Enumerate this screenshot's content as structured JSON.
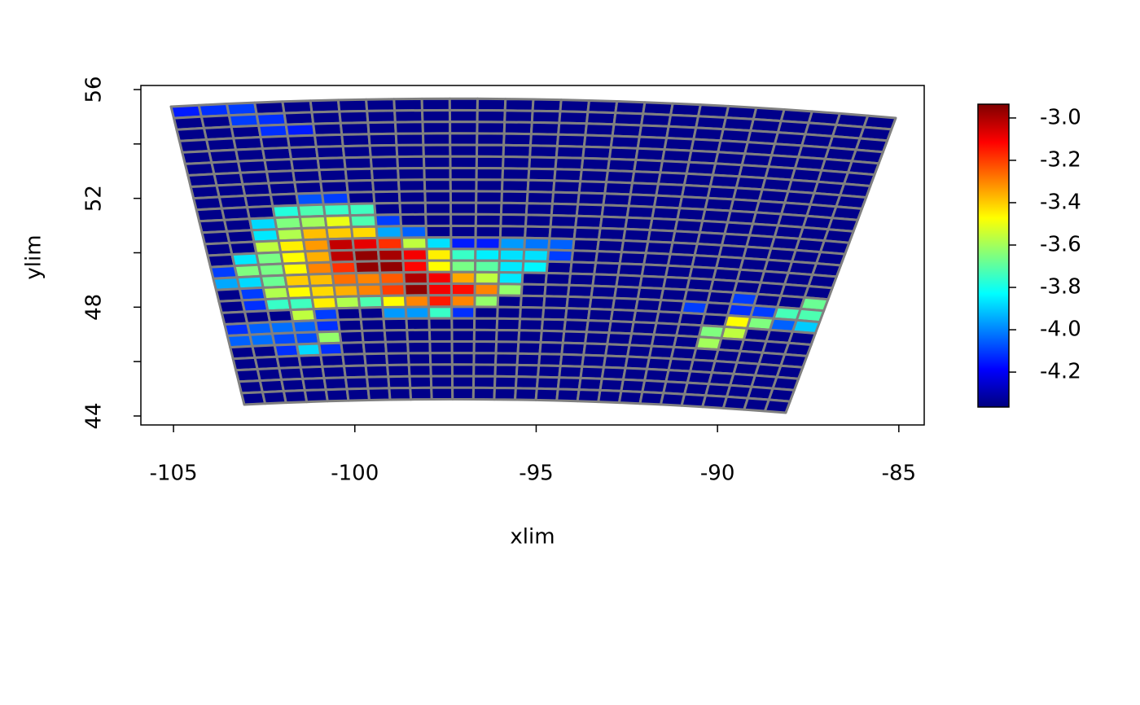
{
  "chart_data": {
    "type": "heatmap",
    "x_label": "xlim",
    "y_label": "ylim",
    "xlim": [
      -105.9,
      -84.3
    ],
    "ylim": [
      43.67,
      56.15
    ],
    "xticks": [
      -105,
      -100,
      -95,
      -90,
      -85
    ],
    "yticks": [
      44,
      {
        "value": 46,
        "label": null
      },
      48,
      {
        "value": 50,
        "label": null
      },
      52,
      {
        "value": 54,
        "label": null
      },
      56
    ],
    "zlim": [
      -4.365,
      -2.935
    ],
    "zticks": [
      {
        "value": -3,
        "label": "-3.0"
      },
      -3.2,
      -3.4,
      -3.6,
      -3.8,
      {
        "value": -4,
        "label": "-4.0"
      },
      -4.2
    ],
    "colormap": [
      "#00007F",
      "#0000FF",
      "#007FFF",
      "#00FFFF",
      "#7FFF7F",
      "#FFFF00",
      "#FF7F00",
      "#FF0000",
      "#7F0000"
    ],
    "cell_border_color": "#808080",
    "z": [
      [
        -4.15,
        -4.12,
        -4.1,
        -4.35,
        -4.35,
        -4.35,
        -4.35,
        -4.35,
        -4.35,
        -4.35,
        -4.35,
        -4.35,
        -4.35,
        -4.35,
        -4.35,
        -4.35,
        -4.35,
        -4.35,
        -4.35,
        -4.35,
        -4.35,
        -4.35,
        -4.35,
        -4.35,
        -4.35,
        -4.35
      ],
      [
        -4.35,
        -4.35,
        -4.1,
        -4.12,
        -4.35,
        -4.35,
        -4.35,
        -4.35,
        -4.35,
        -4.35,
        -4.35,
        -4.35,
        -4.35,
        -4.35,
        -4.35,
        -4.35,
        -4.35,
        -4.35,
        -4.35,
        -4.35,
        -4.35,
        -4.35,
        -4.35,
        -4.35,
        -4.35,
        -4.35
      ],
      [
        -4.35,
        -4.35,
        -4.35,
        -4.12,
        -4.15,
        -4.35,
        -4.35,
        -4.35,
        -4.35,
        -4.35,
        -4.35,
        -4.35,
        -4.35,
        -4.35,
        -4.35,
        -4.35,
        -4.35,
        -4.35,
        -4.35,
        -4.35,
        -4.35,
        -4.35,
        -4.35,
        -4.35,
        -4.35,
        -4.35
      ],
      [
        -4.35,
        -4.35,
        -4.35,
        -4.35,
        -4.35,
        -4.35,
        -4.35,
        -4.35,
        -4.35,
        -4.35,
        -4.35,
        -4.35,
        -4.35,
        -4.35,
        -4.35,
        -4.35,
        -4.35,
        -4.35,
        -4.35,
        -4.35,
        -4.35,
        -4.35,
        -4.35,
        -4.35,
        -4.35,
        -4.35
      ],
      [
        -4.35,
        -4.35,
        -4.35,
        -4.35,
        -4.35,
        -4.35,
        -4.35,
        -4.35,
        -4.35,
        -4.35,
        -4.35,
        -4.35,
        -4.35,
        -4.35,
        -4.35,
        -4.35,
        -4.35,
        -4.35,
        -4.35,
        -4.35,
        -4.35,
        -4.35,
        -4.35,
        -4.35,
        -4.35,
        -4.35
      ],
      [
        -4.35,
        -4.35,
        -4.35,
        -4.35,
        -4.35,
        -4.35,
        -4.35,
        -4.35,
        -4.35,
        -4.35,
        -4.35,
        -4.35,
        -4.35,
        -4.35,
        -4.35,
        -4.35,
        -4.35,
        -4.35,
        -4.35,
        -4.35,
        -4.35,
        -4.35,
        -4.35,
        -4.35,
        -4.35,
        -4.35
      ],
      [
        -4.35,
        -4.35,
        -4.35,
        -4.35,
        -4.35,
        -4.35,
        -4.35,
        -4.35,
        -4.35,
        -4.35,
        -4.35,
        -4.35,
        -4.35,
        -4.35,
        -4.35,
        -4.35,
        -4.35,
        -4.35,
        -4.35,
        -4.35,
        -4.35,
        -4.35,
        -4.35,
        -4.35,
        -4.35,
        -4.35
      ],
      [
        -4.35,
        -4.35,
        -4.35,
        -4.35,
        -4.35,
        -4.35,
        -4.35,
        -4.35,
        -4.35,
        -4.35,
        -4.35,
        -4.35,
        -4.35,
        -4.35,
        -4.35,
        -4.35,
        -4.35,
        -4.35,
        -4.35,
        -4.35,
        -4.35,
        -4.35,
        -4.35,
        -4.35,
        -4.35,
        -4.35
      ],
      [
        -4.35,
        -4.35,
        -4.35,
        -4.35,
        -4.07,
        -4.1,
        -4.35,
        -4.35,
        -4.35,
        -4.35,
        -4.35,
        -4.35,
        -4.35,
        -4.35,
        -4.35,
        -4.35,
        -4.35,
        -4.35,
        -4.35,
        -4.35,
        -4.35,
        -4.35,
        -4.35,
        -4.35,
        -4.35,
        -4.35
      ],
      [
        -4.35,
        -4.35,
        -4.35,
        -3.78,
        -3.72,
        -3.75,
        -3.74,
        -4.35,
        -4.35,
        -4.35,
        -4.35,
        -4.35,
        -4.35,
        -4.35,
        -4.35,
        -4.35,
        -4.35,
        -4.35,
        -4.35,
        -4.35,
        -4.35,
        -4.35,
        -4.35,
        -4.35,
        -4.35,
        -4.35
      ],
      [
        -4.35,
        -4.35,
        -3.88,
        -3.65,
        -3.6,
        -3.5,
        -3.72,
        -4.1,
        -4.35,
        -4.35,
        -4.35,
        -4.35,
        -4.35,
        -4.35,
        -4.35,
        -4.35,
        -4.35,
        -4.35,
        -4.35,
        -4.35,
        -4.35,
        -4.35,
        -4.35,
        -4.35,
        -4.35,
        -4.35
      ],
      [
        -4.35,
        -4.35,
        -3.86,
        -3.58,
        -3.38,
        -3.4,
        -3.42,
        -3.95,
        -4.05,
        -4.35,
        -4.35,
        -4.35,
        -4.35,
        -4.35,
        -4.35,
        -4.35,
        -4.35,
        -4.35,
        -4.35,
        -4.35,
        -4.35,
        -4.35,
        -4.35,
        -4.35,
        -4.35,
        -4.35
      ],
      [
        -4.35,
        -4.35,
        -3.56,
        -3.45,
        -3.33,
        -3.03,
        -3.08,
        -3.18,
        -3.56,
        -3.87,
        -4.15,
        -4.15,
        -3.97,
        -4.02,
        -4.05,
        -4.35,
        -4.35,
        -4.35,
        -4.35,
        -4.35,
        -4.35,
        -4.35,
        -4.35,
        -4.35,
        -4.35,
        -4.35
      ],
      [
        -4.35,
        -3.86,
        -3.66,
        -3.47,
        -3.36,
        -3.02,
        -2.96,
        -2.99,
        -3.1,
        -3.45,
        -3.75,
        -3.85,
        -3.87,
        -3.87,
        -4.1,
        -4.35,
        -4.35,
        -4.35,
        -4.35,
        -4.35,
        -4.35,
        -4.35,
        -4.35,
        -4.35,
        -4.35,
        -4.35
      ],
      [
        -4.1,
        -3.65,
        -3.66,
        -3.47,
        -3.3,
        -3.18,
        -2.96,
        -2.96,
        -3.12,
        -3.47,
        -3.66,
        -3.7,
        -3.86,
        -3.84,
        -4.35,
        -4.35,
        -4.35,
        -4.35,
        -4.35,
        -4.35,
        -4.35,
        -4.35,
        -4.35,
        -4.35,
        -4.35,
        -4.35
      ],
      [
        -3.95,
        -3.88,
        -3.68,
        -3.4,
        -3.38,
        -3.27,
        -3.3,
        -3.24,
        -3.0,
        -3.1,
        -3.35,
        -3.56,
        -3.86,
        -4.35,
        -4.35,
        -4.35,
        -4.35,
        -4.35,
        -4.35,
        -4.35,
        -4.35,
        -4.35,
        -4.35,
        -4.35,
        -4.35,
        -4.35
      ],
      [
        -4.35,
        -4.1,
        -3.58,
        -3.47,
        -3.42,
        -3.36,
        -3.3,
        -3.2,
        -2.96,
        -3.1,
        -3.13,
        -3.3,
        -3.62,
        -4.35,
        -4.35,
        -4.35,
        -4.35,
        -4.35,
        -4.35,
        -4.35,
        -4.35,
        -4.35,
        -4.1,
        -4.35,
        -4.35,
        -3.68
      ],
      [
        -4.35,
        -4.12,
        -3.75,
        -3.74,
        -3.45,
        -3.58,
        -3.72,
        -3.47,
        -3.3,
        -3.15,
        -3.3,
        -3.62,
        -4.35,
        -4.35,
        -4.35,
        -4.35,
        -4.35,
        -4.35,
        -4.35,
        -4.35,
        -4.1,
        -4.35,
        -4.12,
        -4.1,
        -3.73,
        -3.72
      ],
      [
        -4.35,
        -4.35,
        -4.35,
        -3.56,
        -4.1,
        -4.35,
        -4.35,
        -3.97,
        -3.97,
        -3.75,
        -4.12,
        -4.35,
        -4.35,
        -4.35,
        -4.35,
        -4.35,
        -4.35,
        -4.35,
        -4.35,
        -4.35,
        -4.35,
        -4.35,
        -3.47,
        -3.65,
        -4.05,
        -3.9
      ],
      [
        -4.12,
        -4.05,
        -4.03,
        -4.05,
        -4.12,
        -4.35,
        -4.35,
        -4.35,
        -4.35,
        -4.35,
        -4.35,
        -4.35,
        -4.35,
        -4.35,
        -4.35,
        -4.35,
        -4.35,
        -4.35,
        -4.35,
        -4.35,
        -4.35,
        -3.65,
        -3.56,
        -4.35,
        -4.35,
        -4.35
      ],
      [
        -4.05,
        -4.03,
        -4.08,
        -4.08,
        -3.62,
        -4.35,
        -4.35,
        -4.35,
        -4.35,
        -4.35,
        -4.35,
        -4.35,
        -4.35,
        -4.35,
        -4.35,
        -4.35,
        -4.35,
        -4.35,
        -4.35,
        -4.35,
        -4.35,
        -3.6,
        -4.35,
        -4.35,
        -4.35,
        -4.35
      ],
      [
        -4.35,
        -4.35,
        -4.12,
        -3.88,
        -4.12,
        -4.35,
        -4.35,
        -4.35,
        -4.35,
        -4.35,
        -4.35,
        -4.35,
        -4.35,
        -4.35,
        -4.35,
        -4.35,
        -4.35,
        -4.35,
        -4.35,
        -4.35,
        -4.35,
        -4.35,
        -4.35,
        -4.35,
        -4.35,
        -4.35
      ],
      [
        -4.35,
        -4.35,
        -4.35,
        -4.35,
        -4.35,
        -4.35,
        -4.35,
        -4.35,
        -4.35,
        -4.35,
        -4.35,
        -4.35,
        -4.35,
        -4.35,
        -4.35,
        -4.35,
        -4.35,
        -4.35,
        -4.35,
        -4.35,
        -4.35,
        -4.35,
        -4.35,
        -4.35,
        -4.35,
        -4.35
      ],
      [
        -4.35,
        -4.35,
        -4.35,
        -4.35,
        -4.35,
        -4.35,
        -4.35,
        -4.35,
        -4.35,
        -4.35,
        -4.35,
        -4.35,
        -4.35,
        -4.35,
        -4.35,
        -4.35,
        -4.35,
        -4.35,
        -4.35,
        -4.35,
        -4.35,
        -4.35,
        -4.35,
        -4.35,
        -4.35,
        -4.35
      ],
      [
        -4.35,
        -4.35,
        -4.35,
        -4.35,
        -4.35,
        -4.35,
        -4.35,
        -4.35,
        -4.35,
        -4.35,
        -4.35,
        -4.35,
        -4.35,
        -4.35,
        -4.35,
        -4.35,
        -4.35,
        -4.35,
        -4.35,
        -4.35,
        -4.35,
        -4.35,
        -4.35,
        -4.35,
        -4.35,
        -4.35
      ],
      [
        -4.35,
        -4.35,
        -4.35,
        -4.35,
        -4.35,
        -4.35,
        -4.35,
        -4.35,
        -4.35,
        -4.35,
        -4.35,
        -4.35,
        -4.35,
        -4.35,
        -4.35,
        -4.35,
        -4.35,
        -4.35,
        -4.35,
        -4.35,
        -4.35,
        -4.35,
        -4.35,
        -4.35,
        -4.35,
        -4.35
      ]
    ]
  }
}
